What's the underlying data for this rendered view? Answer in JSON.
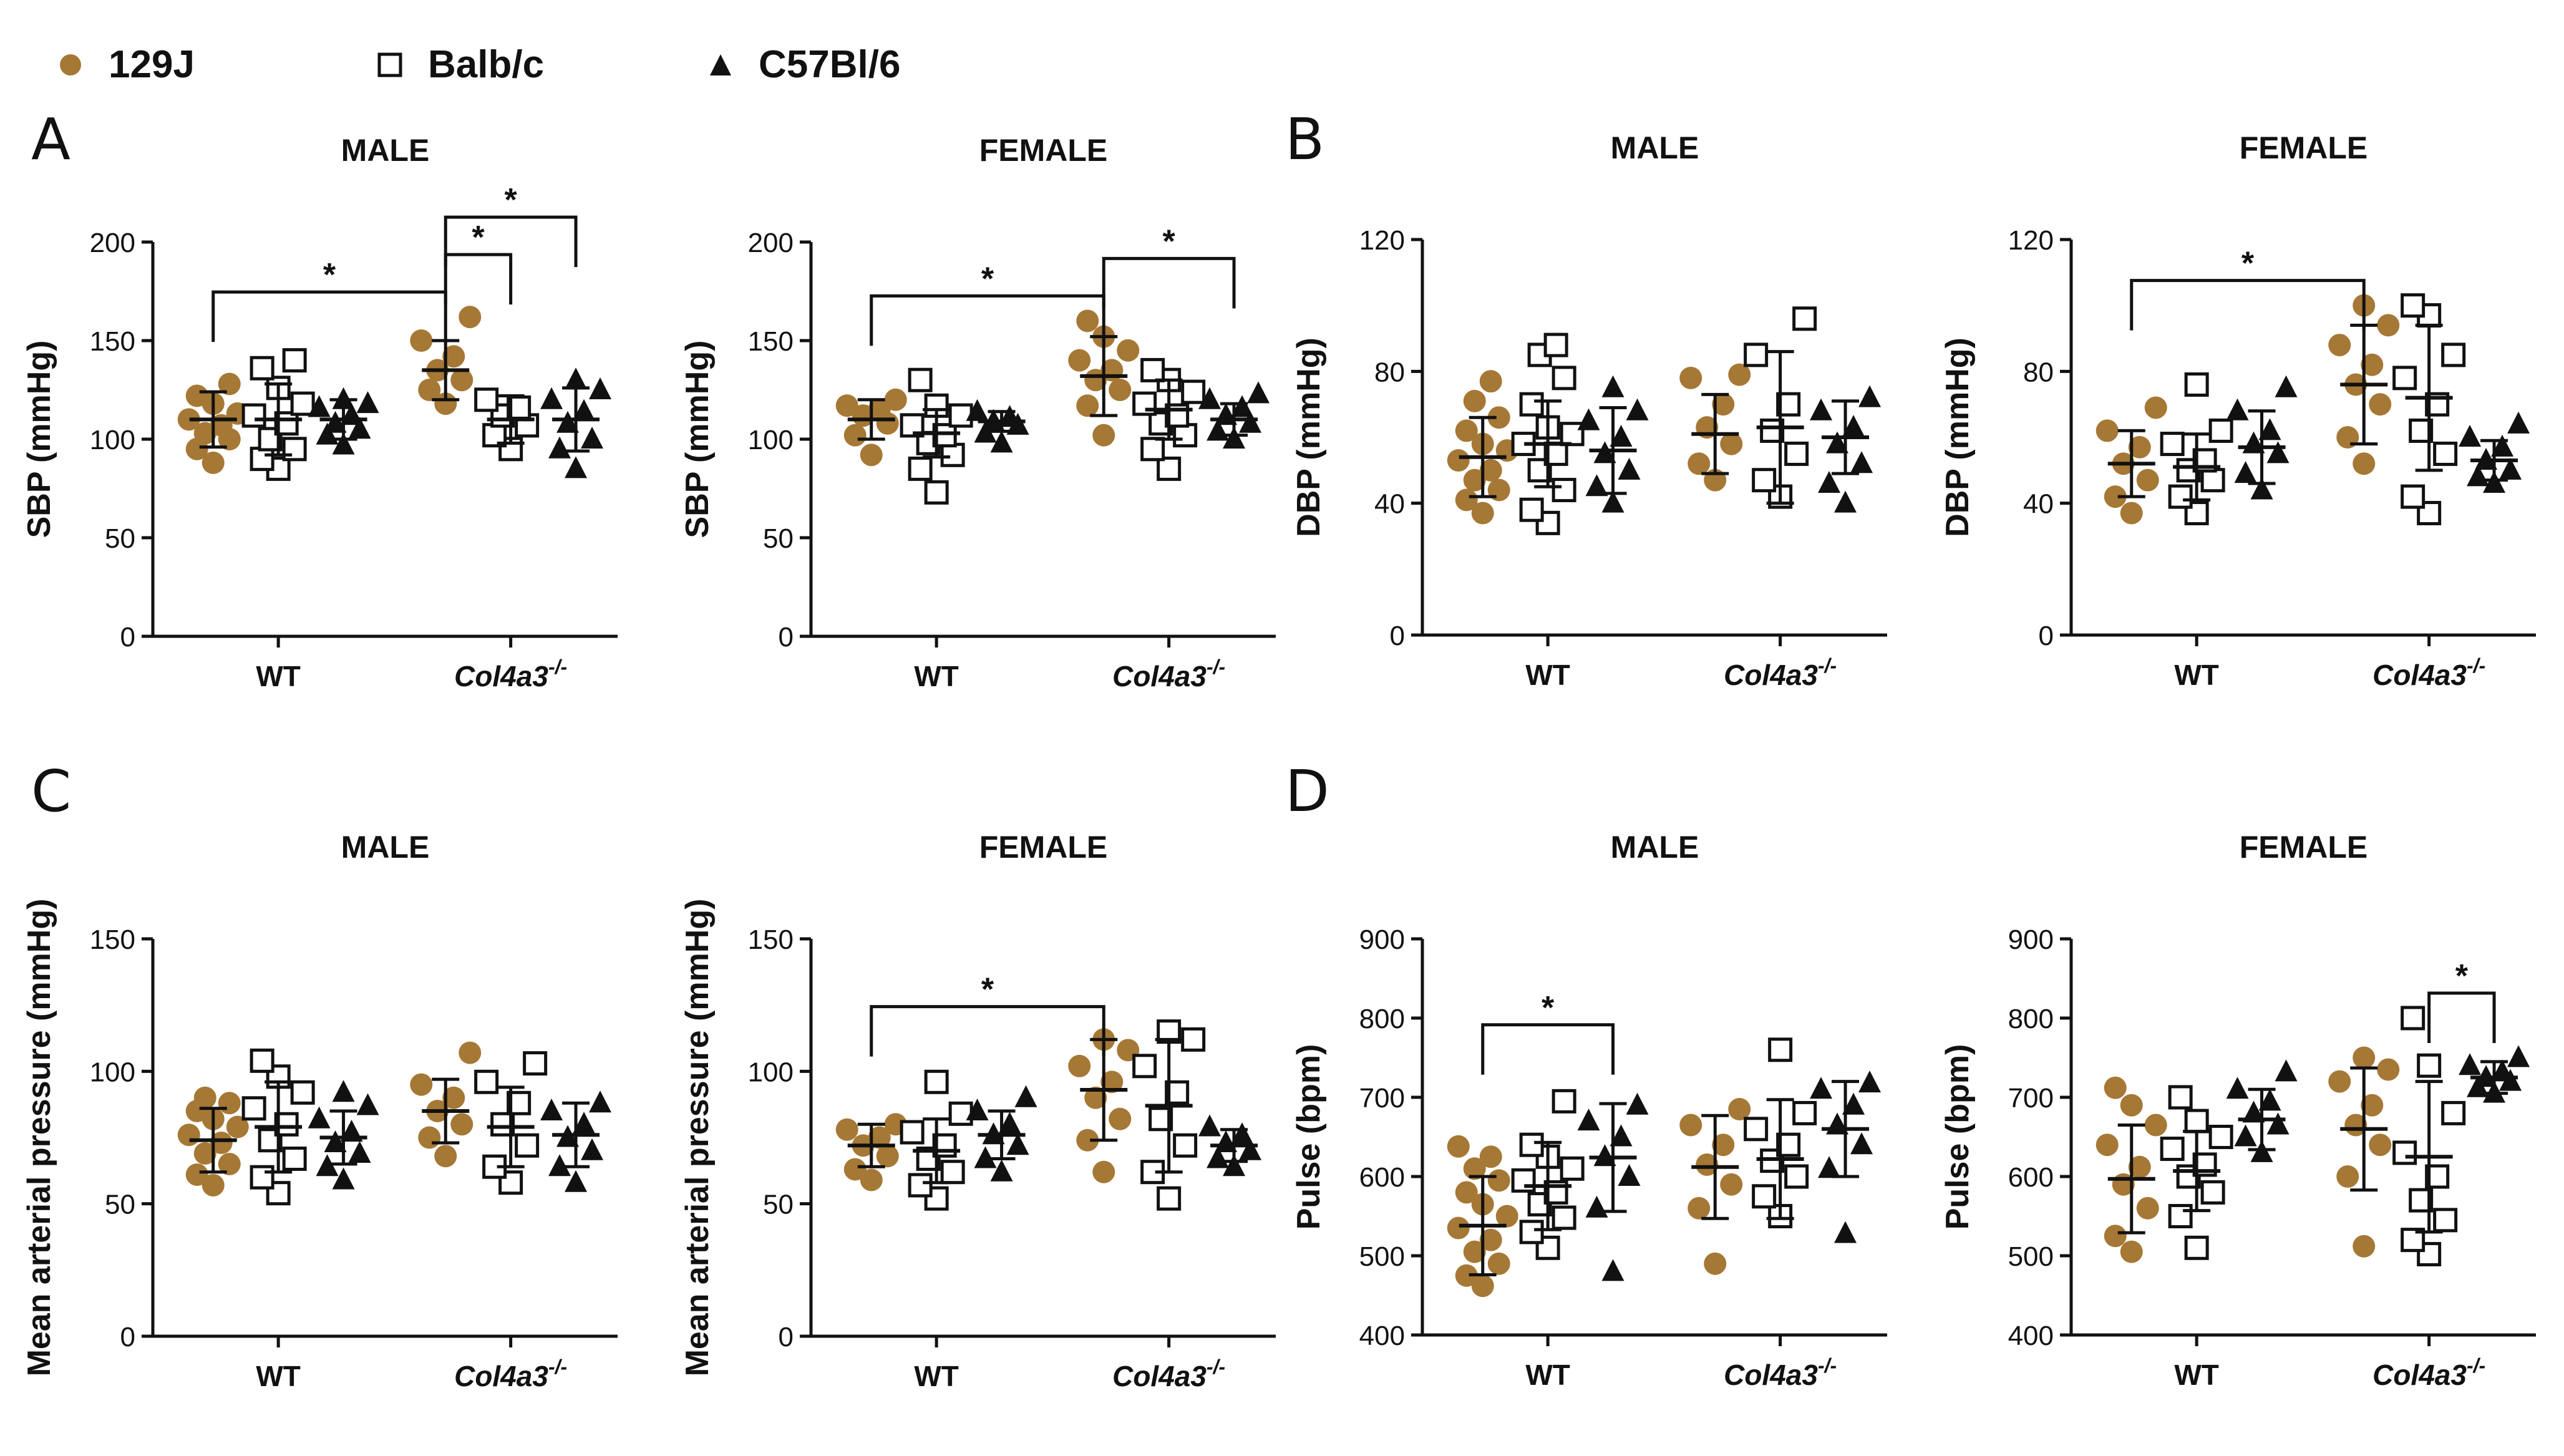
{
  "legend": {
    "items": [
      {
        "label": "129J",
        "marker": "circle-filled",
        "color": "#A67835"
      },
      {
        "label": "Balb/c",
        "marker": "square-open",
        "color": "#111111"
      },
      {
        "label": "C57Bl/6",
        "marker": "triangle-filled",
        "color": "#111111"
      }
    ]
  },
  "panel_letters": [
    "A",
    "B",
    "C",
    "D"
  ],
  "chart_data": [
    {
      "type": "scatter",
      "panel": "A",
      "title": "MALE",
      "ylabel": "SBP (mmHg)",
      "ylim": [
        0,
        200
      ],
      "yticks": [
        0,
        50,
        100,
        150,
        200
      ],
      "categories": [
        "WT",
        "Col4a3-/-"
      ],
      "category_labels": [
        {
          "base": "WT",
          "sup": ""
        },
        {
          "base": "Col4a3",
          "sup": "-/-"
        }
      ],
      "series": [
        {
          "name": "129J",
          "mean": [
            110,
            135
          ],
          "sd": [
            14,
            15
          ],
          "values": [
            [
              88,
              95,
              100,
              103,
              107,
              110,
              113,
              118,
              122,
              128
            ],
            [
              118,
              125,
              130,
              135,
              142,
              150,
              162
            ]
          ]
        },
        {
          "name": "Balb/c",
          "mean": [
            110,
            110
          ],
          "sd": [
            18,
            12
          ],
          "values": [
            [
              85,
              90,
              95,
              100,
              108,
              112,
              118,
              126,
              136,
              140
            ],
            [
              95,
              102,
              107,
              112,
              116,
              120
            ]
          ]
        },
        {
          "name": "C57Bl/6",
          "mean": [
            110,
            110
          ],
          "sd": [
            10,
            16
          ],
          "values": [
            [
              97,
              102,
              105,
              108,
              112,
              116,
              118,
              120
            ],
            [
              85,
              95,
              100,
              108,
              114,
              120,
              125,
              130
            ]
          ]
        }
      ],
      "significance": [
        {
          "from": [
            0,
            "129J"
          ],
          "to": [
            1,
            "129J"
          ],
          "label": "*"
        },
        {
          "from": [
            1,
            "129J"
          ],
          "to": [
            1,
            "Balb/c"
          ],
          "label": "*"
        },
        {
          "from": [
            1,
            "129J"
          ],
          "to": [
            1,
            "C57Bl/6"
          ],
          "label": "*"
        }
      ]
    },
    {
      "type": "scatter",
      "panel": "A",
      "title": "FEMALE",
      "ylabel": "SBP (mmHg)",
      "ylim": [
        0,
        200
      ],
      "yticks": [
        0,
        50,
        100,
        150,
        200
      ],
      "categories": [
        "WT",
        "Col4a3-/-"
      ],
      "category_labels": [
        {
          "base": "WT",
          "sup": ""
        },
        {
          "base": "Col4a3",
          "sup": "-/-"
        }
      ],
      "series": [
        {
          "name": "129J",
          "mean": [
            110,
            132
          ],
          "sd": [
            10,
            20
          ],
          "values": [
            [
              92,
              102,
              108,
              112,
              115,
              117,
              120
            ],
            [
              102,
              117,
              125,
              130,
              135,
              140,
              145,
              152,
              160
            ]
          ]
        },
        {
          "name": "Balb/c",
          "mean": [
            103,
            115
          ],
          "sd": [
            12,
            15
          ],
          "values": [
            [
              73,
              85,
              92,
              98,
              102,
              107,
              112,
              117,
              130
            ],
            [
              85,
              95,
              102,
              108,
              112,
              118,
              124,
              130,
              135
            ]
          ]
        },
        {
          "name": "C57Bl/6",
          "mean": [
            109,
            110
          ],
          "sd": [
            5,
            8
          ],
          "values": [
            [
              98,
              103,
              107,
              109,
              111,
              114
            ],
            [
              100,
              104,
              108,
              112,
              116,
              120,
              123
            ]
          ]
        }
      ],
      "significance": [
        {
          "from": [
            0,
            "129J"
          ],
          "to": [
            1,
            "129J"
          ],
          "label": "*"
        },
        {
          "from": [
            1,
            "129J"
          ],
          "to": [
            1,
            "C57Bl/6"
          ],
          "label": "*"
        }
      ]
    },
    {
      "type": "scatter",
      "panel": "B",
      "title": "MALE",
      "ylabel": "DBP (mmHg)",
      "ylim": [
        0,
        120
      ],
      "yticks": [
        0,
        40,
        80,
        120
      ],
      "categories": [
        "WT",
        "Col4a3-/-"
      ],
      "category_labels": [
        {
          "base": "WT",
          "sup": ""
        },
        {
          "base": "Col4a3",
          "sup": "-/-"
        }
      ],
      "series": [
        {
          "name": "129J",
          "mean": [
            54,
            61
          ],
          "sd": [
            12,
            12
          ],
          "values": [
            [
              37,
              41,
              44,
              47,
              50,
              53,
              56,
              58,
              62,
              66,
              71,
              77
            ],
            [
              47,
              52,
              58,
              63,
              70,
              78,
              79
            ]
          ]
        },
        {
          "name": "Balb/c",
          "mean": [
            58,
            63
          ],
          "sd": [
            13,
            23
          ],
          "values": [
            [
              34,
              38,
              44,
              50,
              55,
              58,
              61,
              63,
              70,
              78,
              85,
              88
            ],
            [
              42,
              47,
              55,
              62,
              70,
              85,
              96
            ]
          ]
        },
        {
          "name": "C57Bl/6",
          "mean": [
            56,
            60
          ],
          "sd": [
            13,
            11
          ],
          "values": [
            [
              40,
              45,
              50,
              55,
              60,
              65,
              68,
              75
            ],
            [
              40,
              46,
              52,
              58,
              63,
              68,
              72
            ]
          ]
        }
      ],
      "significance": []
    },
    {
      "type": "scatter",
      "panel": "B",
      "title": "FEMALE",
      "ylabel": "DBP (mmHg)",
      "ylim": [
        0,
        120
      ],
      "yticks": [
        0,
        40,
        80,
        120
      ],
      "categories": [
        "WT",
        "Col4a3-/-"
      ],
      "category_labels": [
        {
          "base": "WT",
          "sup": ""
        },
        {
          "base": "Col4a3",
          "sup": "-/-"
        }
      ],
      "series": [
        {
          "name": "129J",
          "mean": [
            52,
            76
          ],
          "sd": [
            10,
            18
          ],
          "values": [
            [
              37,
              42,
              47,
              52,
              57,
              62,
              69
            ],
            [
              52,
              60,
              70,
              76,
              82,
              88,
              94,
              100
            ]
          ]
        },
        {
          "name": "Balb/c",
          "mean": [
            51,
            72
          ],
          "sd": [
            10,
            22
          ],
          "values": [
            [
              37,
              42,
              47,
              50,
              53,
              58,
              62,
              76
            ],
            [
              37,
              42,
              55,
              62,
              70,
              78,
              85,
              97,
              100
            ]
          ]
        },
        {
          "name": "C57Bl/6",
          "mean": [
            57,
            53
          ],
          "sd": [
            11,
            6
          ],
          "values": [
            [
              44,
              49,
              55,
              58,
              62,
              68,
              75
            ],
            [
              46,
              48,
              50,
              53,
              57,
              60,
              64
            ]
          ]
        }
      ],
      "significance": [
        {
          "from": [
            0,
            "129J"
          ],
          "to": [
            1,
            "129J"
          ],
          "label": "*"
        }
      ]
    },
    {
      "type": "scatter",
      "panel": "C",
      "title": "MALE",
      "ylabel": "Mean arterial pressure (mmHg)",
      "ylim": [
        0,
        150
      ],
      "yticks": [
        0,
        50,
        100,
        150
      ],
      "categories": [
        "WT",
        "Col4a3-/-"
      ],
      "category_labels": [
        {
          "base": "WT",
          "sup": ""
        },
        {
          "base": "Col4a3",
          "sup": "-/-"
        }
      ],
      "series": [
        {
          "name": "129J",
          "mean": [
            74,
            85
          ],
          "sd": [
            12,
            12
          ],
          "values": [
            [
              57,
              61,
              65,
              69,
              73,
              76,
              79,
              82,
              85,
              88,
              90
            ],
            [
              68,
              75,
              80,
              85,
              90,
              95,
              107
            ]
          ]
        },
        {
          "name": "Balb/c",
          "mean": [
            79,
            79
          ],
          "sd": [
            17,
            15
          ],
          "values": [
            [
              54,
              60,
              67,
              74,
              80,
              86,
              92,
              98,
              104
            ],
            [
              58,
              64,
              72,
              80,
              88,
              96,
              103
            ]
          ]
        },
        {
          "name": "C57Bl/6",
          "mean": [
            75,
            76
          ],
          "sd": [
            10,
            12
          ],
          "values": [
            [
              59,
              64,
              69,
              73,
              77,
              82,
              87,
              92
            ],
            [
              58,
              64,
              70,
              75,
              80,
              85,
              88
            ]
          ]
        }
      ],
      "significance": []
    },
    {
      "type": "scatter",
      "panel": "C",
      "title": "FEMALE",
      "ylabel": "Mean arterial pressure (mmHg)",
      "ylim": [
        0,
        150
      ],
      "yticks": [
        0,
        50,
        100,
        150
      ],
      "categories": [
        "WT",
        "Col4a3-/-"
      ],
      "category_labels": [
        {
          "base": "WT",
          "sup": ""
        },
        {
          "base": "Col4a3",
          "sup": "-/-"
        }
      ],
      "series": [
        {
          "name": "129J",
          "mean": [
            72,
            93
          ],
          "sd": [
            8,
            19
          ],
          "values": [
            [
              59,
              63,
              68,
              72,
              75,
              78,
              80
            ],
            [
              62,
              74,
              82,
              90,
              96,
              102,
              108,
              112
            ]
          ]
        },
        {
          "name": "Balb/c",
          "mean": [
            70,
            87
          ],
          "sd": [
            12,
            25
          ],
          "values": [
            [
              52,
              57,
              62,
              67,
              72,
              77,
              84,
              96
            ],
            [
              52,
              62,
              72,
              82,
              92,
              102,
              112,
              115
            ]
          ]
        },
        {
          "name": "C57Bl/6",
          "mean": [
            76,
            72
          ],
          "sd": [
            9,
            6
          ],
          "values": [
            [
              62,
              67,
              72,
              76,
              80,
              85,
              90
            ],
            [
              64,
              67,
              70,
              73,
              76,
              79
            ]
          ]
        }
      ],
      "significance": [
        {
          "from": [
            0,
            "129J"
          ],
          "to": [
            1,
            "129J"
          ],
          "label": "*"
        }
      ]
    },
    {
      "type": "scatter",
      "panel": "D",
      "title": "MALE",
      "ylabel": "Pulse (bpm)",
      "ylim": [
        400,
        900
      ],
      "yticks": [
        400,
        500,
        600,
        700,
        800,
        900
      ],
      "categories": [
        "WT",
        "Col4a3-/-"
      ],
      "category_labels": [
        {
          "base": "WT",
          "sup": ""
        },
        {
          "base": "Col4a3",
          "sup": "-/-"
        }
      ],
      "series": [
        {
          "name": "129J",
          "mean": [
            538,
            612
          ],
          "sd": [
            62,
            65
          ],
          "values": [
            [
              462,
              475,
              490,
              505,
              520,
              535,
              550,
              565,
              580,
              595,
              610,
              625,
              638
            ],
            [
              490,
              560,
              590,
              615,
              640,
              665,
              685
            ]
          ]
        },
        {
          "name": "Balb/c",
          "mean": [
            588,
            622
          ],
          "sd": [
            55,
            75
          ],
          "values": [
            [
              510,
              530,
              548,
              565,
              580,
              595,
              610,
              625,
              640,
              695
            ],
            [
              550,
              575,
              600,
              620,
              640,
              660,
              680,
              760
            ]
          ]
        },
        {
          "name": "C57Bl/6",
          "mean": [
            624,
            660
          ],
          "sd": [
            68,
            60
          ],
          "values": [
            [
              480,
              560,
              600,
              625,
              650,
              670,
              690
            ],
            [
              528,
              610,
              640,
              665,
              690,
              710,
              718
            ]
          ]
        }
      ],
      "significance": [
        {
          "from": [
            0,
            "129J"
          ],
          "to": [
            0,
            "C57Bl/6"
          ],
          "label": "*"
        }
      ]
    },
    {
      "type": "scatter",
      "panel": "D",
      "title": "FEMALE",
      "ylabel": "Pulse (bpm)",
      "ylim": [
        400,
        900
      ],
      "yticks": [
        400,
        500,
        600,
        700,
        800,
        900
      ],
      "categories": [
        "WT",
        "Col4a3-/-"
      ],
      "category_labels": [
        {
          "base": "WT",
          "sup": ""
        },
        {
          "base": "Col4a3",
          "sup": "-/-"
        }
      ],
      "series": [
        {
          "name": "129J",
          "mean": [
            597,
            660
          ],
          "sd": [
            68,
            77
          ],
          "values": [
            [
              505,
              525,
              560,
              590,
              612,
              640,
              665,
              690,
              712
            ],
            [
              512,
              600,
              640,
              665,
              690,
              720,
              735,
              750
            ]
          ]
        },
        {
          "name": "Balb/c",
          "mean": [
            607,
            625
          ],
          "sd": [
            50,
            95
          ],
          "values": [
            [
              510,
              550,
              580,
              600,
              615,
              635,
              650,
              670,
              700
            ],
            [
              502,
              520,
              545,
              570,
              600,
              630,
              680,
              740,
              800
            ]
          ]
        },
        {
          "name": "C57Bl/6",
          "mean": [
            672,
            725
          ],
          "sd": [
            38,
            20
          ],
          "values": [
            [
              630,
              650,
              665,
              680,
              695,
              710,
              732
            ],
            [
              705,
              712,
              720,
              725,
              732,
              740,
              750
            ]
          ]
        }
      ],
      "significance": [
        {
          "from": [
            1,
            "Balb/c"
          ],
          "to": [
            1,
            "C57Bl/6"
          ],
          "label": "*"
        }
      ]
    }
  ]
}
